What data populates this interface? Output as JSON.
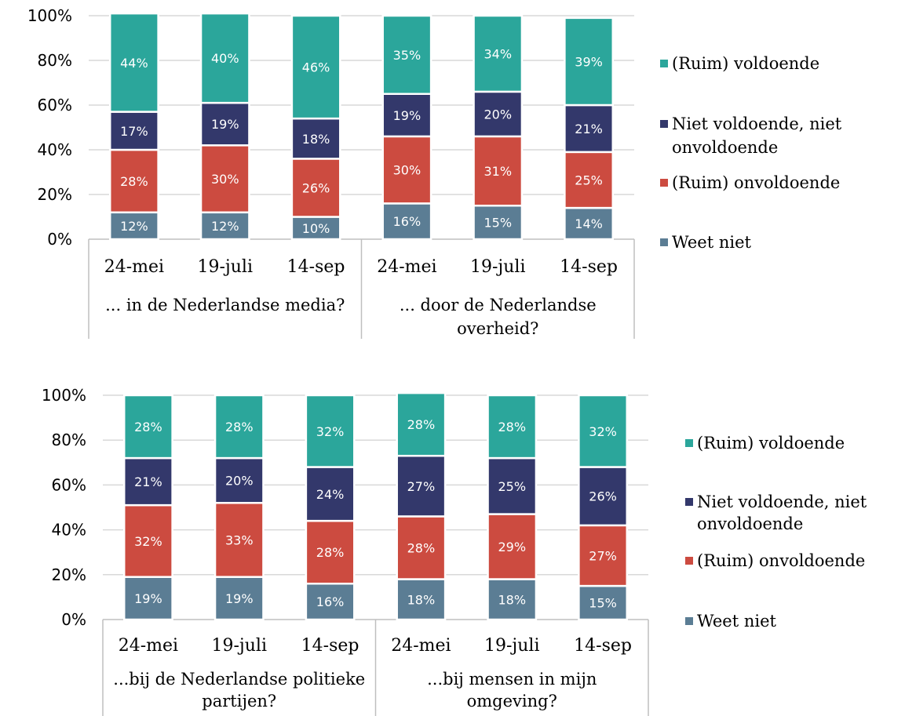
{
  "chart_data": [
    {
      "type": "bar",
      "stacked": true,
      "percent_stacked": true,
      "ylim": [
        0,
        100
      ],
      "yticks": [
        "0%",
        "20%",
        "40%",
        "60%",
        "80%",
        "100%"
      ],
      "grid": true,
      "legend_position": "right",
      "categories": [
        "24-mei",
        "19-juli",
        "14-sep",
        "24-mei",
        "19-juli",
        "14-sep"
      ],
      "groups": [
        {
          "label_lines": [
            "... in de Nederlandse media?"
          ],
          "span": [
            0,
            2
          ]
        },
        {
          "label_lines": [
            "... door de Nederlandse",
            "overheid?"
          ],
          "span": [
            3,
            5
          ]
        }
      ],
      "series": [
        {
          "name": "Weet niet",
          "color": "#5b7d94",
          "values": [
            12,
            12,
            10,
            16,
            15,
            14
          ]
        },
        {
          "name": "(Ruim) onvoldoende",
          "color": "#cc4b40",
          "values": [
            28,
            30,
            26,
            30,
            31,
            25
          ]
        },
        {
          "name": "Niet voldoende, niet onvoldoende",
          "color": "#33386b",
          "values": [
            17,
            19,
            18,
            19,
            20,
            21
          ]
        },
        {
          "name": "(Ruim) voldoende",
          "color": "#2ba69b",
          "values": [
            44,
            40,
            46,
            35,
            34,
            39
          ]
        }
      ],
      "legend": [
        {
          "lines": [
            "(Ruim) voldoende"
          ],
          "color": "#2ba69b"
        },
        {
          "lines": [
            "Niet voldoende, niet",
            "onvoldoende"
          ],
          "color": "#33386b"
        },
        {
          "lines": [
            "(Ruim) onvoldoende"
          ],
          "color": "#cc4b40"
        },
        {
          "lines": [
            "Weet niet"
          ],
          "color": "#5b7d94"
        }
      ]
    },
    {
      "type": "bar",
      "stacked": true,
      "percent_stacked": true,
      "ylim": [
        0,
        100
      ],
      "yticks": [
        "0%",
        "20%",
        "40%",
        "60%",
        "80%",
        "100%"
      ],
      "grid": true,
      "legend_position": "right",
      "categories": [
        "24-mei",
        "19-juli",
        "14-sep",
        "24-mei",
        "19-juli",
        "14-sep"
      ],
      "groups": [
        {
          "label_lines": [
            "...bij de Nederlandse politieke",
            "partijen?"
          ],
          "span": [
            0,
            2
          ]
        },
        {
          "label_lines": [
            "...bij mensen in mijn",
            "omgeving?"
          ],
          "span": [
            3,
            5
          ]
        }
      ],
      "series": [
        {
          "name": "Weet niet",
          "color": "#5b7d94",
          "values": [
            19,
            19,
            16,
            18,
            18,
            15
          ]
        },
        {
          "name": "(Ruim) onvoldoende",
          "color": "#cc4b40",
          "values": [
            32,
            33,
            28,
            28,
            29,
            27
          ]
        },
        {
          "name": "Niet voldoende, niet onvoldoende",
          "color": "#33386b",
          "values": [
            21,
            20,
            24,
            27,
            25,
            26
          ]
        },
        {
          "name": "(Ruim) voldoende",
          "color": "#2ba69b",
          "values": [
            28,
            28,
            32,
            28,
            28,
            32
          ]
        }
      ],
      "legend": [
        {
          "lines": [
            "(Ruim) voldoende"
          ],
          "color": "#2ba69b"
        },
        {
          "lines": [
            "Niet voldoende, niet",
            "onvoldoende"
          ],
          "color": "#33386b"
        },
        {
          "lines": [
            "(Ruim) onvoldoende"
          ],
          "color": "#cc4b40"
        },
        {
          "lines": [
            "Weet niet"
          ],
          "color": "#5b7d94"
        }
      ]
    }
  ]
}
